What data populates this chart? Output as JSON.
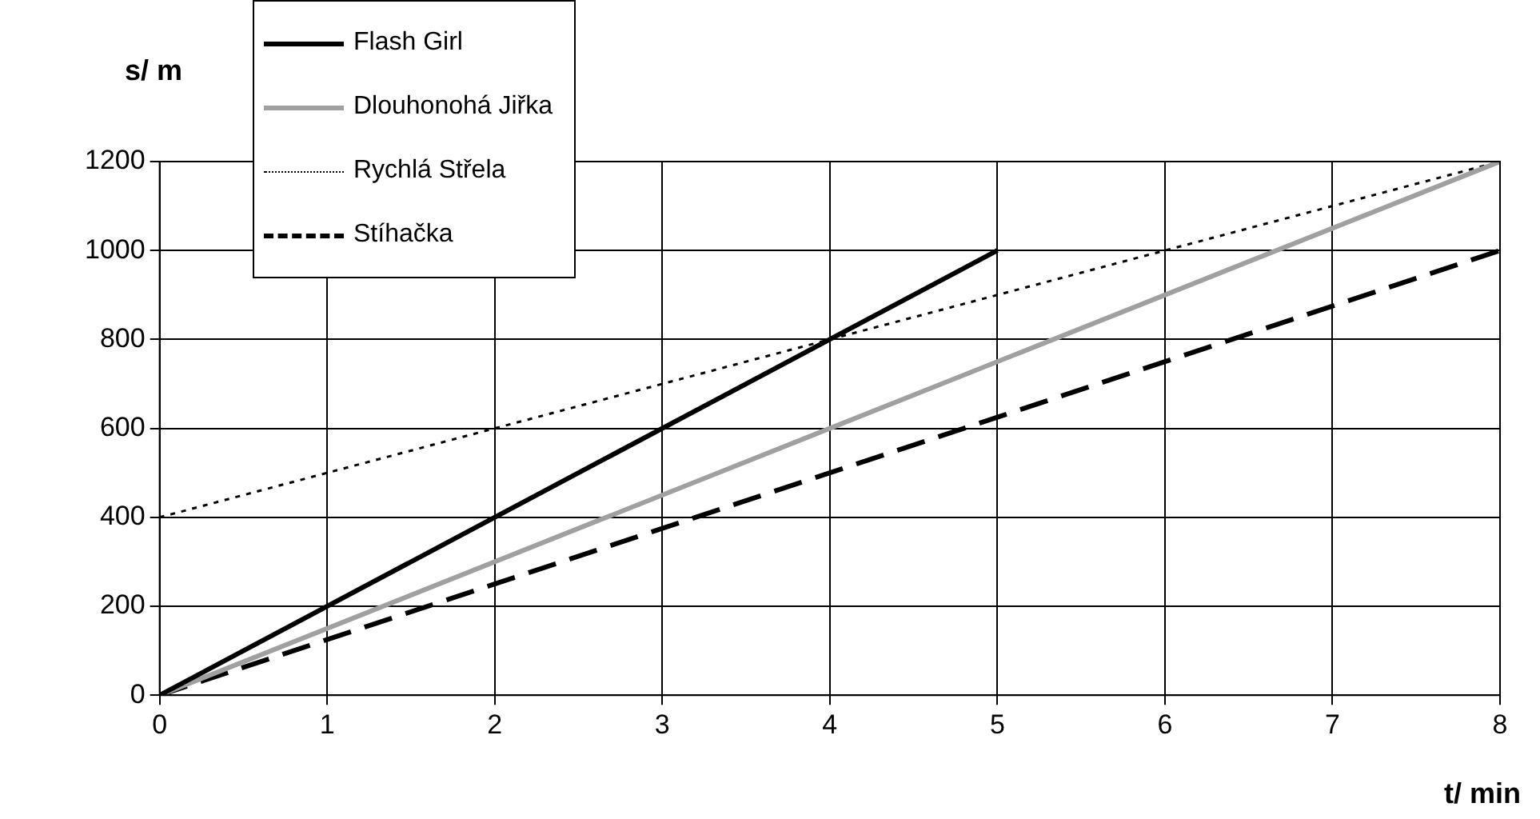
{
  "chart_data": {
    "type": "line",
    "xlabel": "t/ min",
    "ylabel": "s/ m",
    "xlim": [
      0,
      8
    ],
    "xticks": [
      0,
      1,
      2,
      3,
      4,
      5,
      6,
      7,
      8
    ],
    "ylim": [
      0,
      1200
    ],
    "yticks": [
      0,
      200,
      400,
      600,
      800,
      1000,
      1200
    ],
    "grid": true,
    "legend": "top left",
    "marker": "none",
    "series": [
      {
        "name": "Flash Girl",
        "color": "#000000",
        "line_style": "solid",
        "x": [
          0,
          5
        ],
        "values": [
          0,
          1000
        ]
      },
      {
        "name": "Dlouhonohá Jiřka",
        "color": "#a0a0a0",
        "line_style": "solid",
        "x": [
          0,
          8
        ],
        "values": [
          0,
          1200
        ]
      },
      {
        "name": "Rychlá Střela",
        "color": "#000000",
        "line_style": "dotted",
        "x": [
          0,
          8
        ],
        "values": [
          400,
          1200
        ]
      },
      {
        "name": "Stíhačka",
        "color": "#000000",
        "line_style": "dashed",
        "x": [
          0,
          8
        ],
        "values": [
          0,
          1000
        ]
      }
    ]
  }
}
